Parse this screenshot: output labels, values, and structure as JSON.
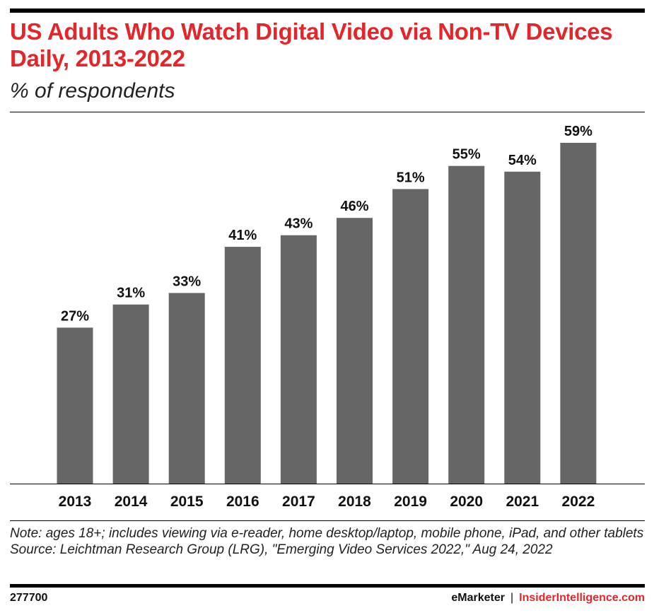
{
  "title": "US Adults Who Watch Digital Video via Non-TV Devices Daily, 2013-2022",
  "subtitle": "% of respondents",
  "chart_data": {
    "type": "bar",
    "categories": [
      "2013",
      "2014",
      "2015",
      "2016",
      "2017",
      "2018",
      "2019",
      "2020",
      "2021",
      "2022"
    ],
    "values": [
      27,
      31,
      33,
      41,
      43,
      46,
      51,
      55,
      54,
      59
    ],
    "value_labels": [
      "27%",
      "31%",
      "33%",
      "41%",
      "43%",
      "46%",
      "51%",
      "55%",
      "54%",
      "59%"
    ],
    "title": "US Adults Who Watch Digital Video via Non-TV Devices Daily, 2013-2022",
    "subtitle": "% of respondents",
    "xlabel": "",
    "ylabel": "",
    "ylim": [
      0,
      59
    ],
    "grid": false,
    "colors": {
      "bar": "#666666"
    }
  },
  "note": "Note: ages 18+; includes viewing via e-reader, home desktop/laptop, mobile phone, iPad, and other tablets",
  "source": "Source: Leichtman Research Group (LRG), \"Emerging Video Services 2022,\" Aug 24, 2022",
  "footer": {
    "id": "277700",
    "brand": "eMarketer",
    "separator": "|",
    "site": "InsiderIntelligence.com"
  },
  "colors": {
    "accent": "#e4262a",
    "text": "#111111"
  }
}
